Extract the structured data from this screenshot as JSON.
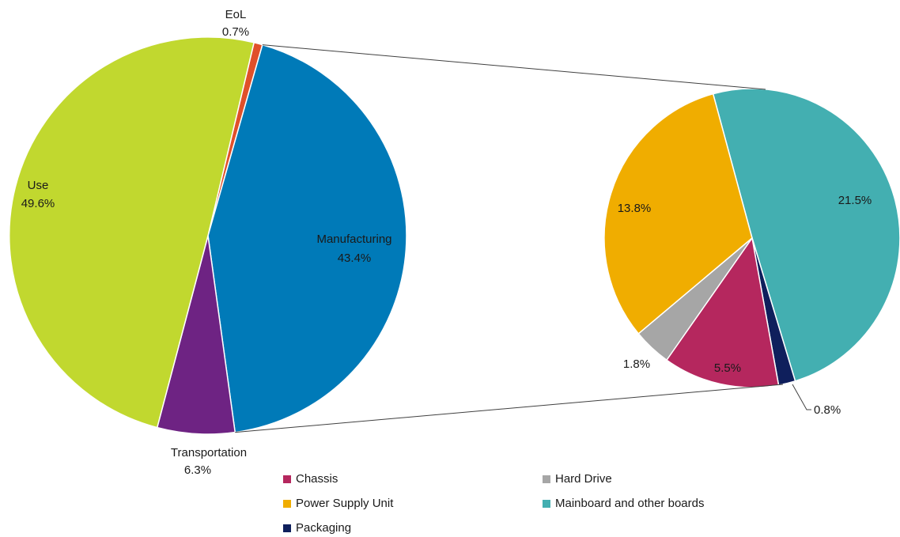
{
  "chart_data": [
    {
      "type": "pie",
      "slices": [
        {
          "name": "EoL",
          "value": 0.7,
          "value_label": "0.7%",
          "color": "#E0502A"
        },
        {
          "name": "Manufacturing",
          "value": 43.4,
          "value_label": "43.4%",
          "color": "#007AB8"
        },
        {
          "name": "Transportation",
          "value": 6.3,
          "value_label": "6.3%",
          "color": "#6E2383"
        },
        {
          "name": "Use",
          "value": 49.6,
          "value_label": "49.6%",
          "color": "#C1D82F"
        }
      ]
    },
    {
      "type": "pie",
      "breakdown_of": "Manufacturing",
      "slices": [
        {
          "name": "Mainboard and other boards",
          "value": 21.5,
          "value_label": "21.5%",
          "color": "#43AFB1"
        },
        {
          "name": "Packaging",
          "value": 0.8,
          "value_label": "0.8%",
          "color": "#0F1F5C"
        },
        {
          "name": "Chassis",
          "value": 5.5,
          "value_label": "5.5%",
          "color": "#B5275E"
        },
        {
          "name": "Hard Drive",
          "value": 1.8,
          "value_label": "1.8%",
          "color": "#A6A6A6"
        },
        {
          "name": "Power Supply Unit",
          "value": 13.8,
          "value_label": "13.8%",
          "color": "#F0AD00"
        }
      ],
      "legend": [
        "Chassis",
        "Hard Drive",
        "Power Supply Unit",
        "Mainboard and other boards",
        "Packaging"
      ],
      "legend_position": "bottom"
    }
  ]
}
